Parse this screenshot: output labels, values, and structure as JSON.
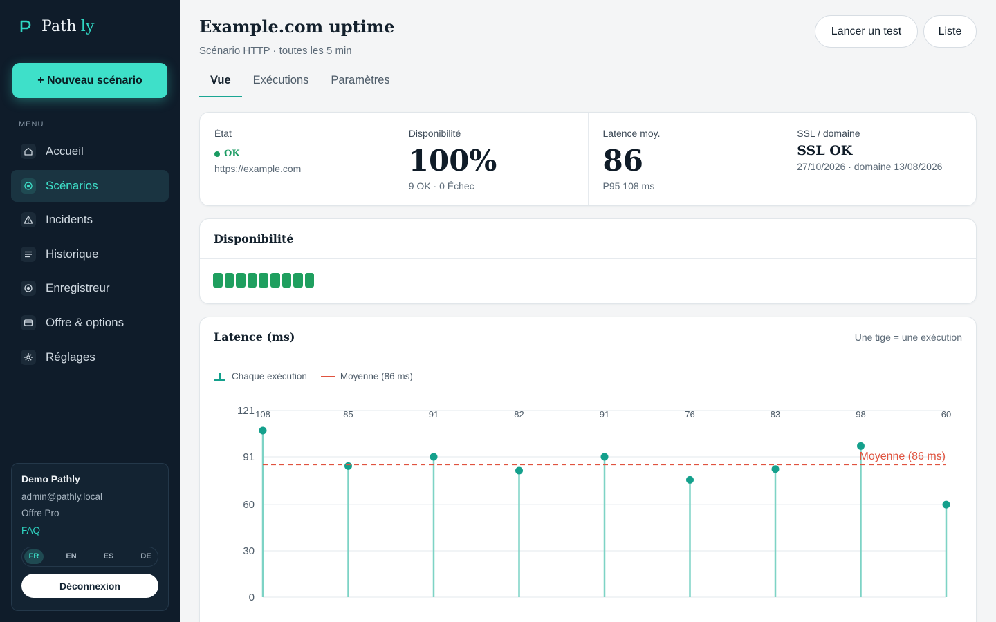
{
  "brand": {
    "name_part1": "Path",
    "name_part2": "ly"
  },
  "sidebar": {
    "new_button": "+ Nouveau scénario",
    "menu_label": "MENU",
    "items": [
      {
        "label": "Accueil",
        "icon": "home-icon"
      },
      {
        "label": "Scénarios",
        "icon": "target-icon",
        "active": true
      },
      {
        "label": "Incidents",
        "icon": "warning-icon"
      },
      {
        "label": "Historique",
        "icon": "list-icon"
      },
      {
        "label": "Enregistreur",
        "icon": "record-icon"
      },
      {
        "label": "Offre & options",
        "icon": "card-icon"
      },
      {
        "label": "Réglages",
        "icon": "gear-icon"
      }
    ],
    "account": {
      "name": "Demo Pathly",
      "email": "admin@pathly.local",
      "plan": "Offre Pro",
      "faq": "FAQ",
      "languages": [
        "FR",
        "EN",
        "ES",
        "DE"
      ],
      "active_language": "FR",
      "logout": "Déconnexion"
    }
  },
  "header": {
    "title": "Example.com uptime",
    "subtitle": "Scénario HTTP · toutes les 5 min",
    "run_test": "Lancer un test",
    "list": "Liste"
  },
  "tabs": [
    {
      "label": "Vue",
      "active": true
    },
    {
      "label": "Exécutions"
    },
    {
      "label": "Paramètres"
    }
  ],
  "stats": {
    "state": {
      "label": "État",
      "status": "OK",
      "url": "https://example.com"
    },
    "availability": {
      "label": "Disponibilité",
      "value": "100%",
      "detail": "9 OK · 0 Échec"
    },
    "latency": {
      "label": "Latence moy.",
      "value": "86",
      "detail": "P95 108 ms"
    },
    "ssl": {
      "label": "SSL / domaine",
      "value": "SSL OK",
      "detail": "27/10/2026 · domaine 13/08/2026"
    }
  },
  "availability_card": {
    "title": "Disponibilité",
    "checks": [
      "ok",
      "ok",
      "ok",
      "ok",
      "ok",
      "ok",
      "ok",
      "ok",
      "ok"
    ]
  },
  "latency_card": {
    "title": "Latence (ms)",
    "note": "Une tige = une exécution",
    "legend_each": "Chaque exécution",
    "legend_avg": "Moyenne (86 ms)",
    "avg_label": "Moyenne (86 ms)"
  },
  "colors": {
    "accent": "#3ee0c9",
    "sidebar_bg": "#0f1c2a",
    "ok_green": "#1f9f5f",
    "stem": "#7dd3c5",
    "point": "#14a08c",
    "average_line": "#e0533f"
  },
  "chart_data": {
    "type": "scatter",
    "title": "Latence (ms)",
    "ylabel": "",
    "xlabel": "",
    "series": [
      {
        "name": "Chaque exécution",
        "values": [
          108,
          85,
          91,
          82,
          91,
          76,
          83,
          98,
          60
        ]
      }
    ],
    "average": 86,
    "yticks": [
      0,
      30,
      60,
      91,
      121
    ],
    "ylim": [
      0,
      121
    ],
    "grid": true,
    "legend": "top-left"
  }
}
